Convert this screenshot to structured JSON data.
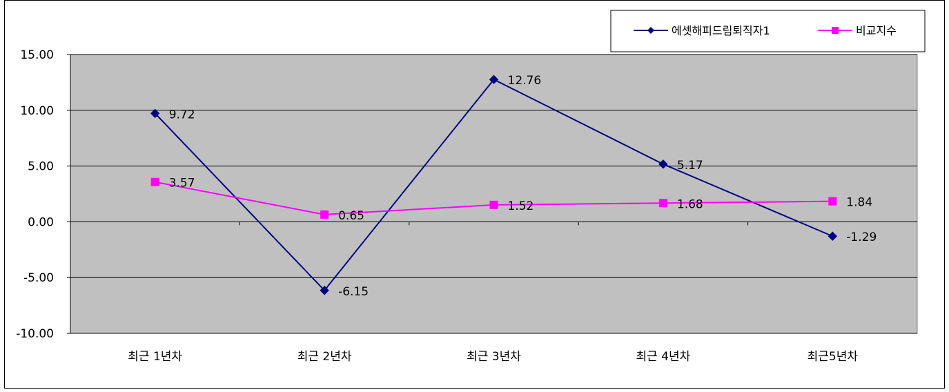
{
  "chart_data": {
    "type": "line",
    "title": "",
    "xlabel": "",
    "ylabel": "",
    "categories": [
      "최근 1년차",
      "최근 2년차",
      "최근 3년차",
      "최근 4년차",
      "최근5년차"
    ],
    "ylim": [
      -10,
      15
    ],
    "y_ticks": [
      15,
      10,
      5,
      0,
      -5,
      -10
    ],
    "y_tick_labels": [
      "15.00",
      "10.00",
      "5.00",
      "0.00",
      "-5.00",
      "-10.00"
    ],
    "grid": true,
    "legend_position": "top-right",
    "plot_background": "#c0c0c0",
    "series": [
      {
        "name": "에셋해피드림퇴직자1",
        "color": "#000080",
        "marker": "diamond",
        "values": [
          9.72,
          -6.15,
          12.76,
          5.17,
          -1.29
        ],
        "labels": [
          "9.72",
          "-6.15",
          "12.76",
          "5.17",
          "-1.29"
        ]
      },
      {
        "name": "비교지수",
        "color": "#ff00ff",
        "marker": "square",
        "values": [
          3.57,
          0.65,
          1.52,
          1.68,
          1.84
        ],
        "labels": [
          "3.57",
          "0.65",
          "1.52",
          "1.68",
          "1.84"
        ]
      }
    ]
  }
}
